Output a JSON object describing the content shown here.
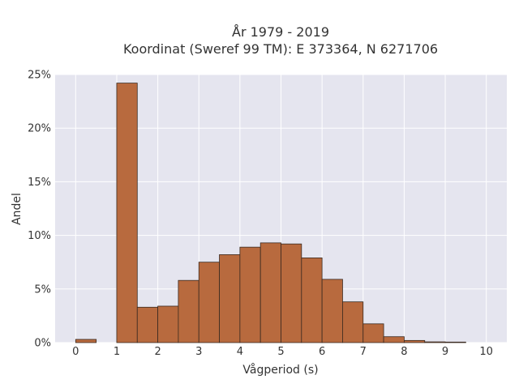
{
  "chart_data": {
    "type": "bar",
    "title_line1": "År 1979 - 2019",
    "title_line2": "Koordinat (Sweref 99 TM): E 373364, N 6271706",
    "xlabel": "Vågperiod (s)",
    "ylabel": "Andel",
    "xlim": [
      -0.5,
      10.5
    ],
    "ylim": [
      0,
      25
    ],
    "bin_width": 0.5,
    "bins": [
      {
        "x": 0.0,
        "value": 0.3
      },
      {
        "x": 0.5,
        "value": 0.0
      },
      {
        "x": 1.0,
        "value": 24.2
      },
      {
        "x": 1.5,
        "value": 3.3
      },
      {
        "x": 2.0,
        "value": 3.4
      },
      {
        "x": 2.5,
        "value": 5.8
      },
      {
        "x": 3.0,
        "value": 7.5
      },
      {
        "x": 3.5,
        "value": 8.2
      },
      {
        "x": 4.0,
        "value": 8.9
      },
      {
        "x": 4.5,
        "value": 9.3
      },
      {
        "x": 5.0,
        "value": 9.2
      },
      {
        "x": 5.5,
        "value": 7.9
      },
      {
        "x": 6.0,
        "value": 5.9
      },
      {
        "x": 6.5,
        "value": 3.8
      },
      {
        "x": 7.0,
        "value": 1.75
      },
      {
        "x": 7.5,
        "value": 0.55
      },
      {
        "x": 8.0,
        "value": 0.2
      },
      {
        "x": 8.5,
        "value": 0.07
      },
      {
        "x": 9.0,
        "value": 0.05
      },
      {
        "x": 9.5,
        "value": 0.0
      }
    ],
    "x_ticks": [
      0,
      1,
      2,
      3,
      4,
      5,
      6,
      7,
      8,
      9,
      10
    ],
    "y_ticks": [
      0,
      5,
      10,
      15,
      20,
      25
    ],
    "y_tick_labels": [
      "0%",
      "5%",
      "10%",
      "15%",
      "20%",
      "25%"
    ],
    "grid": true,
    "colors": {
      "bar_fill": "#b86a3e",
      "bar_stroke": "#3a2a20",
      "plot_bg": "#e5e5ef",
      "grid": "#ffffff"
    }
  }
}
